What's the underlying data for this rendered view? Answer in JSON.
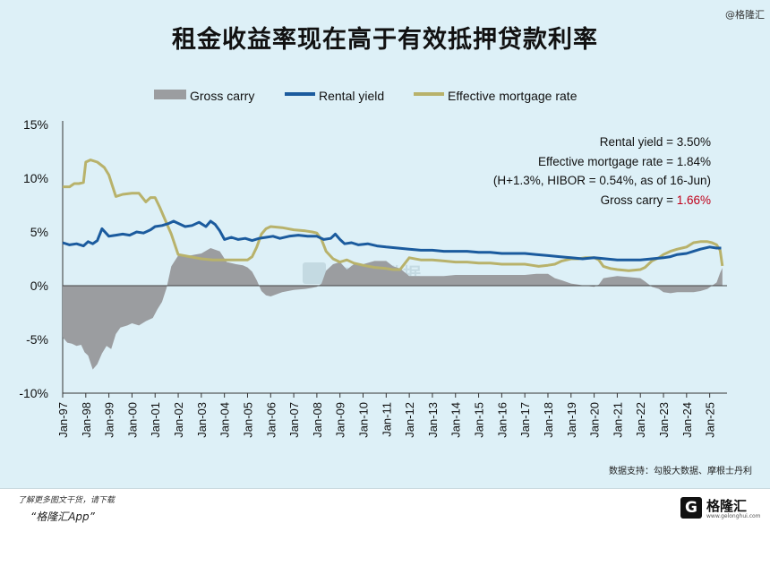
{
  "header": {
    "title": "租金收益率现在高于有效抵押贷款利率",
    "corner_tag": "@格隆汇"
  },
  "watermark": "勾股大数据",
  "footer": {
    "source": "数据支持：勾股大数据、摩根士丹利",
    "promo_line1": "了解更多图文干货，请下载",
    "promo_line2": "“格隆汇App”",
    "logo_glyph": "G",
    "logo_name": "格隆汇",
    "logo_url": "www.gelonghui.com"
  },
  "colors": {
    "gross_carry": "#9b9da0",
    "rental_yield": "#1b5b9e",
    "mortgage": "#b8b26b",
    "highlight": "#c0001a"
  },
  "chart_data": {
    "type": "line",
    "title": "租金收益率现在高于有效抵押贷款利率",
    "xlabel": "",
    "ylabel": "",
    "ylim": [
      -10,
      15
    ],
    "xlim": [
      1997.0,
      2025.75
    ],
    "yticks": [
      "-10%",
      "-5%",
      "0%",
      "5%",
      "10%",
      "15%"
    ],
    "categories": [
      "Jan-97",
      "Jan-98",
      "Jan-99",
      "Jan-00",
      "Jan-01",
      "Jan-02",
      "Jan-03",
      "Jan-04",
      "Jan-05",
      "Jan-06",
      "Jan-07",
      "Jan-08",
      "Jan-09",
      "Jan-10",
      "Jan-11",
      "Jan-12",
      "Jan-13",
      "Jan-14",
      "Jan-15",
      "Jan-16",
      "Jan-17",
      "Jan-18",
      "Jan-19",
      "Jan-20",
      "Jan-21",
      "Jan-22",
      "Jan-23",
      "Jan-24",
      "Jan-25"
    ],
    "legend": [
      "Gross carry",
      "Rental yield",
      "Effective mortgage rate"
    ],
    "annotations": [
      {
        "text": "Rental yield = 3.50%"
      },
      {
        "text": "Effective mortgage rate = 1.84%"
      },
      {
        "text": "(H+1.3%, HIBOR = 0.54%, as of 16-Jun)"
      },
      {
        "text": "Gross carry = ",
        "value": "1.66%"
      }
    ],
    "series": [
      {
        "name": "Rental yield",
        "x": [
          1997.0,
          1997.3,
          1997.6,
          1997.9,
          1998.1,
          1998.3,
          1998.5,
          1998.7,
          1999.0,
          1999.3,
          1999.6,
          1999.9,
          2000.2,
          2000.5,
          2000.8,
          2001.0,
          2001.3,
          2001.6,
          2001.8,
          2002.0,
          2002.3,
          2002.6,
          2002.9,
          2003.2,
          2003.4,
          2003.6,
          2003.8,
          2004.0,
          2004.3,
          2004.6,
          2004.9,
          2005.2,
          2005.5,
          2005.8,
          2006.1,
          2006.4,
          2006.8,
          2007.2,
          2007.6,
          2008.0,
          2008.3,
          2008.6,
          2008.8,
          2009.0,
          2009.2,
          2009.5,
          2009.8,
          2010.2,
          2010.6,
          2011.0,
          2011.5,
          2012.0,
          2012.5,
          2013.0,
          2013.5,
          2014.0,
          2014.5,
          2015.0,
          2015.5,
          2016.0,
          2016.5,
          2017.0,
          2017.5,
          2018.0,
          2018.5,
          2019.0,
          2019.5,
          2020.0,
          2020.5,
          2021.0,
          2021.5,
          2022.0,
          2022.5,
          2023.0,
          2023.3,
          2023.6,
          2024.0,
          2024.3,
          2024.6,
          2025.0,
          2025.3,
          2025.5
        ],
        "values": [
          4.0,
          3.8,
          3.9,
          3.7,
          4.1,
          3.9,
          4.2,
          5.3,
          4.6,
          4.7,
          4.8,
          4.7,
          5.0,
          4.9,
          5.2,
          5.5,
          5.6,
          5.8,
          6.0,
          5.8,
          5.5,
          5.6,
          5.9,
          5.5,
          6.0,
          5.7,
          5.1,
          4.3,
          4.5,
          4.3,
          4.4,
          4.2,
          4.4,
          4.5,
          4.6,
          4.4,
          4.6,
          4.7,
          4.6,
          4.6,
          4.3,
          4.4,
          4.8,
          4.3,
          3.9,
          4.0,
          3.8,
          3.9,
          3.7,
          3.6,
          3.5,
          3.4,
          3.3,
          3.3,
          3.2,
          3.2,
          3.2,
          3.1,
          3.1,
          3.0,
          3.0,
          3.0,
          2.9,
          2.8,
          2.7,
          2.6,
          2.5,
          2.6,
          2.5,
          2.4,
          2.4,
          2.4,
          2.5,
          2.6,
          2.7,
          2.9,
          3.0,
          3.2,
          3.4,
          3.6,
          3.5,
          3.5
        ]
      },
      {
        "name": "Effective mortgage rate",
        "x": [
          1997.0,
          1997.3,
          1997.5,
          1997.7,
          1997.9,
          1998.0,
          1998.2,
          1998.5,
          1998.8,
          1999.0,
          1999.3,
          1999.6,
          2000.0,
          2000.3,
          2000.6,
          2000.8,
          2001.0,
          2001.2,
          2001.5,
          2001.7,
          2002.0,
          2002.5,
          2003.0,
          2003.5,
          2004.0,
          2004.5,
          2004.8,
          2005.0,
          2005.2,
          2005.4,
          2005.6,
          2005.8,
          2006.0,
          2006.5,
          2007.0,
          2007.5,
          2007.8,
          2008.0,
          2008.2,
          2008.4,
          2008.7,
          2009.0,
          2009.3,
          2009.6,
          2010.0,
          2010.5,
          2011.0,
          2011.3,
          2011.6,
          2012.0,
          2012.5,
          2013.0,
          2013.5,
          2014.0,
          2014.5,
          2015.0,
          2015.5,
          2016.0,
          2016.5,
          2017.0,
          2017.3,
          2017.6,
          2018.0,
          2018.3,
          2018.6,
          2019.0,
          2019.3,
          2019.6,
          2020.0,
          2020.2,
          2020.4,
          2020.7,
          2021.0,
          2021.5,
          2022.0,
          2022.2,
          2022.5,
          2022.8,
          2023.0,
          2023.3,
          2023.6,
          2024.0,
          2024.3,
          2024.6,
          2024.9,
          2025.1,
          2025.3,
          2025.45,
          2025.55
        ],
        "values": [
          9.2,
          9.2,
          9.5,
          9.5,
          9.6,
          11.5,
          11.7,
          11.5,
          11.0,
          10.3,
          8.3,
          8.5,
          8.6,
          8.6,
          7.8,
          8.2,
          8.2,
          7.3,
          5.8,
          4.8,
          2.9,
          2.7,
          2.5,
          2.4,
          2.4,
          2.4,
          2.4,
          2.4,
          2.7,
          3.6,
          4.8,
          5.3,
          5.5,
          5.4,
          5.2,
          5.1,
          5.0,
          4.9,
          4.3,
          3.2,
          2.5,
          2.2,
          2.4,
          2.1,
          1.9,
          1.7,
          1.6,
          1.5,
          1.5,
          2.6,
          2.4,
          2.4,
          2.3,
          2.2,
          2.2,
          2.1,
          2.1,
          2.0,
          2.0,
          2.0,
          1.9,
          1.8,
          1.9,
          2.0,
          2.3,
          2.5,
          2.5,
          2.6,
          2.6,
          2.4,
          1.8,
          1.6,
          1.5,
          1.4,
          1.5,
          1.7,
          2.3,
          2.6,
          2.9,
          3.2,
          3.4,
          3.6,
          4.0,
          4.1,
          4.1,
          4.0,
          3.8,
          3.3,
          1.84
        ]
      },
      {
        "name": "Gross carry",
        "type": "area",
        "x": [
          1997.0,
          1997.2,
          1997.4,
          1997.6,
          1997.8,
          1997.95,
          1998.1,
          1998.3,
          1998.5,
          1998.7,
          1998.9,
          1999.1,
          1999.3,
          1999.5,
          1999.8,
          2000.0,
          2000.3,
          2000.6,
          2000.9,
          2001.1,
          2001.3,
          2001.5,
          2001.7,
          2002.0,
          2002.5,
          2003.0,
          2003.4,
          2003.8,
          2004.1,
          2004.5,
          2004.8,
          2005.0,
          2005.2,
          2005.4,
          2005.6,
          2005.8,
          2006.0,
          2006.5,
          2007.0,
          2007.5,
          2007.8,
          2008.0,
          2008.2,
          2008.4,
          2008.7,
          2009.0,
          2009.3,
          2009.6,
          2010.0,
          2010.5,
          2011.0,
          2011.3,
          2011.6,
          2012.0,
          2012.5,
          2013.0,
          2013.5,
          2014.0,
          2014.5,
          2015.0,
          2015.5,
          2016.0,
          2016.5,
          2017.0,
          2017.5,
          2018.0,
          2018.3,
          2018.6,
          2019.0,
          2019.3,
          2019.6,
          2020.0,
          2020.2,
          2020.4,
          2020.7,
          2021.0,
          2021.5,
          2022.0,
          2022.2,
          2022.5,
          2022.8,
          2023.0,
          2023.3,
          2023.6,
          2024.0,
          2024.3,
          2024.6,
          2024.9,
          2025.1,
          2025.3,
          2025.45,
          2025.55
        ],
        "values": [
          -4.8,
          -5.3,
          -5.4,
          -5.6,
          -5.5,
          -6.2,
          -6.5,
          -7.8,
          -7.3,
          -6.3,
          -5.6,
          -5.9,
          -4.5,
          -3.9,
          -3.7,
          -3.5,
          -3.7,
          -3.3,
          -3.0,
          -2.2,
          -1.5,
          -0.2,
          1.8,
          2.8,
          2.8,
          3.0,
          3.5,
          3.2,
          2.2,
          2.0,
          1.9,
          1.7,
          1.3,
          0.5,
          -0.5,
          -0.9,
          -1.0,
          -0.6,
          -0.4,
          -0.3,
          -0.2,
          -0.1,
          0.2,
          1.4,
          2.0,
          2.2,
          1.5,
          2.0,
          2.0,
          2.3,
          2.3,
          1.8,
          1.6,
          0.9,
          0.9,
          0.9,
          0.9,
          1.0,
          1.0,
          1.0,
          1.0,
          1.0,
          1.0,
          1.0,
          1.1,
          1.1,
          0.7,
          0.5,
          0.2,
          0.1,
          0.0,
          -0.1,
          0.1,
          0.7,
          0.8,
          0.9,
          0.8,
          0.7,
          0.4,
          -0.1,
          -0.3,
          -0.6,
          -0.7,
          -0.6,
          -0.6,
          -0.6,
          -0.5,
          -0.3,
          0.0,
          0.3,
          1.2,
          1.66
        ]
      }
    ]
  }
}
